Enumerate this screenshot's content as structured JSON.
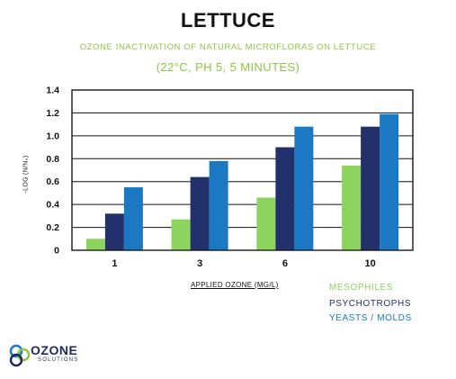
{
  "header": {
    "title": "LETTUCE",
    "subtitle": "OZONE INACTIVATION OF NATURAL MICROFLORAS ON LETTUCE",
    "subtitle2": "(22°C, PH 5, 5 MINUTES)"
  },
  "chart_data": {
    "type": "bar",
    "title": "LETTUCE",
    "subtitle": "OZONE INACTIVATION OF NATURAL MICROFLORAS ON LETTUCE",
    "xlabel": "APPLIED OZONE (MG/L)",
    "ylabel": "-LOG (N/N₀)",
    "categories": [
      "1",
      "3",
      "6",
      "10"
    ],
    "ylim": [
      0,
      1.4
    ],
    "yticks": [
      "0",
      "0.2",
      "0.4",
      "0.6",
      "0.8",
      "1.0",
      "1.2",
      "1.4"
    ],
    "grid": true,
    "legend_position": "bottom-right",
    "series": [
      {
        "name": "MESOPHILES",
        "color": "#8dd35f",
        "values": [
          0.1,
          0.27,
          0.46,
          0.74
        ]
      },
      {
        "name": "PSYCHOTROPHS",
        "color": "#22306b",
        "values": [
          0.32,
          0.64,
          0.9,
          1.08
        ]
      },
      {
        "name": "YEASTS / MOLDS",
        "color": "#1b78c2",
        "values": [
          0.55,
          0.78,
          1.08,
          1.19
        ]
      }
    ]
  },
  "legend": {
    "items": [
      {
        "label": "MESOPHILES",
        "color": "#8dd35f"
      },
      {
        "label": "PSYCHOTROPHS",
        "color": "#22306b"
      },
      {
        "label": "YEASTS / MOLDS",
        "color": "#1b78c2"
      }
    ]
  },
  "logo": {
    "word": "OZONE",
    "sub": "SOLUTIONS"
  }
}
